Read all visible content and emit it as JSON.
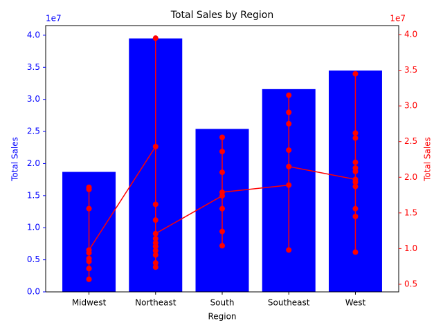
{
  "chart_data": {
    "type": "bar",
    "title": "Total Sales by Region",
    "x_label": "Region",
    "y_label": "Total Sales",
    "y2_label": "Total Sales",
    "y_offset_label": "1e7",
    "y2_offset_label": "1e7",
    "categories": [
      "Midwest",
      "Northeast",
      "South",
      "Southeast",
      "West"
    ],
    "series": [
      {
        "type": "bar",
        "color": "#0000ff",
        "values": [
          18700000,
          39500000,
          25400000,
          31600000,
          34500000
        ]
      },
      {
        "type": "line",
        "axis": "y2",
        "color": "#ff0000",
        "x": [
          "Midwest",
          "Midwest",
          "Midwest",
          "Midwest",
          "Midwest",
          "Midwest",
          "Midwest",
          "Midwest",
          "Midwest",
          "Northeast",
          "Northeast",
          "Northeast",
          "Northeast",
          "Northeast",
          "Northeast",
          "Northeast",
          "Northeast",
          "Northeast",
          "Northeast",
          "Northeast",
          "Northeast",
          "South",
          "South",
          "South",
          "South",
          "South",
          "South",
          "South",
          "South",
          "Southeast",
          "Southeast",
          "Southeast",
          "Southeast",
          "Southeast",
          "Southeast",
          "Southeast",
          "West",
          "West",
          "West",
          "West",
          "West",
          "West",
          "West",
          "West",
          "West",
          "West",
          "West",
          "West"
        ],
        "values": [
          18600000,
          18300000,
          15600000,
          5700000,
          7200000,
          8200000,
          8600000,
          9400000,
          9800000,
          24300000,
          39500000,
          16200000,
          14000000,
          7400000,
          8000000,
          9100000,
          9700000,
          10300000,
          10800000,
          11400000,
          12100000,
          17400000,
          10400000,
          12400000,
          15600000,
          25600000,
          23600000,
          20700000,
          17900000,
          18900000,
          9800000,
          31500000,
          29100000,
          27500000,
          23800000,
          21500000,
          19700000,
          9500000,
          14500000,
          15600000,
          18700000,
          19300000,
          20800000,
          21300000,
          22100000,
          25500000,
          26200000,
          34500000
        ]
      }
    ],
    "ylim": [
      0,
      41500000
    ],
    "yticks": [
      {
        "value": 0,
        "label": "0.0"
      },
      {
        "value": 5000000,
        "label": "0.5"
      },
      {
        "value": 10000000,
        "label": "1.0"
      },
      {
        "value": 15000000,
        "label": "1.5"
      },
      {
        "value": 20000000,
        "label": "2.0"
      },
      {
        "value": 25000000,
        "label": "2.5"
      },
      {
        "value": 30000000,
        "label": "3.0"
      },
      {
        "value": 35000000,
        "label": "3.5"
      },
      {
        "value": 40000000,
        "label": "4.0"
      }
    ],
    "y2lim": [
      3930000,
      41260000
    ],
    "y2ticks": [
      {
        "value": 5000000,
        "label": "0.5"
      },
      {
        "value": 10000000,
        "label": "1.0"
      },
      {
        "value": 15000000,
        "label": "1.5"
      },
      {
        "value": 20000000,
        "label": "2.0"
      },
      {
        "value": 25000000,
        "label": "2.5"
      },
      {
        "value": 30000000,
        "label": "3.0"
      },
      {
        "value": 35000000,
        "label": "3.5"
      },
      {
        "value": 40000000,
        "label": "4.0"
      }
    ]
  }
}
